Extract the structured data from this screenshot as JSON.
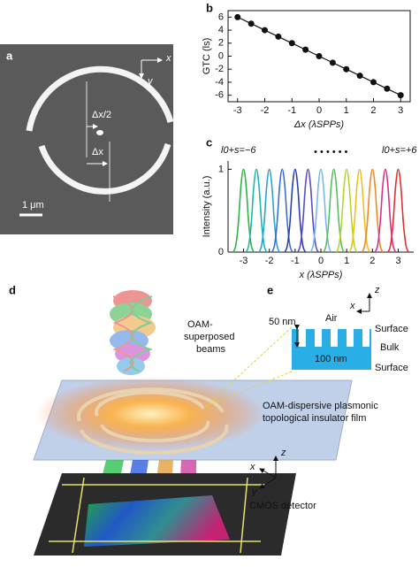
{
  "chart_data": [
    {
      "type": "line",
      "label": "b",
      "ylabel": "GTC (ls)",
      "xlabel": "Δx (λSPPs)",
      "x": [
        -3,
        -2.5,
        -2,
        -1.5,
        -1,
        -0.5,
        0,
        0.5,
        1,
        1.5,
        2,
        2.5,
        3
      ],
      "series": [
        {
          "color": "#111111",
          "values": [
            6,
            5,
            4,
            3,
            2,
            1,
            0,
            -1,
            -2,
            -3,
            -4,
            -5,
            -6
          ]
        }
      ],
      "markers": true,
      "frame": "box",
      "xlim": [
        -3.35,
        3.35
      ],
      "ylim": [
        -7,
        7
      ],
      "xticks": [
        -3,
        -2,
        -1,
        0,
        1,
        2,
        3
      ],
      "yticks": [
        -6,
        -4,
        -2,
        0,
        2,
        4,
        6
      ]
    },
    {
      "type": "line",
      "label": "c",
      "ylabel": "Intensity (a.u.)",
      "xlabel": "x (λSPPs)",
      "annotations": [
        "l0+s=−6",
        "l0+s=+6",
        "• • • • • •"
      ],
      "markers": false,
      "frame": "axes",
      "series": [
        {
          "color": "#2db34a",
          "x": [
            -3.4,
            -3.3,
            -3.2,
            -3.1,
            -3,
            -2.9,
            -2.8,
            -2.7,
            -2.6
          ],
          "values": [
            0,
            0.08,
            0.35,
            0.8,
            1,
            0.8,
            0.35,
            0.08,
            0
          ]
        },
        {
          "color": "#1fb5a8",
          "x": [
            -2.9,
            -2.8,
            -2.7,
            -2.6,
            -2.5,
            -2.4,
            -2.3,
            -2.2,
            -2.1
          ],
          "values": [
            0,
            0.08,
            0.35,
            0.8,
            1,
            0.8,
            0.35,
            0.08,
            0
          ]
        },
        {
          "color": "#2ea0d8",
          "x": [
            -2.4,
            -2.3,
            -2.2,
            -2.1,
            -2,
            -1.9,
            -1.8,
            -1.7,
            -1.6
          ],
          "values": [
            0,
            0.08,
            0.35,
            0.8,
            1,
            0.8,
            0.35,
            0.08,
            0
          ]
        },
        {
          "color": "#3a6fd0",
          "x": [
            -1.9,
            -1.8,
            -1.7,
            -1.6,
            -1.5,
            -1.4,
            -1.3,
            -1.2,
            -1.1
          ],
          "values": [
            0,
            0.08,
            0.35,
            0.8,
            1,
            0.8,
            0.35,
            0.08,
            0
          ]
        },
        {
          "color": "#2a3fb0",
          "x": [
            -1.4,
            -1.3,
            -1.2,
            -1.1,
            -1,
            -0.9,
            -0.8,
            -0.7,
            -0.6
          ],
          "values": [
            0,
            0.08,
            0.35,
            0.8,
            1,
            0.8,
            0.35,
            0.08,
            0
          ]
        },
        {
          "color": "#5a4bc8",
          "x": [
            -0.9,
            -0.8,
            -0.7,
            -0.6,
            -0.5,
            -0.4,
            -0.3,
            -0.2,
            -0.1
          ],
          "values": [
            0,
            0.08,
            0.35,
            0.8,
            1,
            0.8,
            0.35,
            0.08,
            0
          ]
        },
        {
          "color": "#7ab8e8",
          "x": [
            -0.4,
            -0.3,
            -0.2,
            -0.1,
            0,
            0.1,
            0.2,
            0.3,
            0.4
          ],
          "values": [
            0,
            0.08,
            0.35,
            0.8,
            1,
            0.8,
            0.35,
            0.08,
            0
          ]
        },
        {
          "color": "#55c060",
          "x": [
            0.1,
            0.2,
            0.3,
            0.4,
            0.5,
            0.6,
            0.7,
            0.8,
            0.9
          ],
          "values": [
            0,
            0.08,
            0.35,
            0.8,
            1,
            0.8,
            0.35,
            0.08,
            0
          ]
        },
        {
          "color": "#b8d432",
          "x": [
            0.6,
            0.7,
            0.8,
            0.9,
            1,
            1.1,
            1.2,
            1.3,
            1.4
          ],
          "values": [
            0,
            0.08,
            0.35,
            0.8,
            1,
            0.8,
            0.35,
            0.08,
            0
          ]
        },
        {
          "color": "#f0c020",
          "x": [
            1.1,
            1.2,
            1.3,
            1.4,
            1.5,
            1.6,
            1.7,
            1.8,
            1.9
          ],
          "values": [
            0,
            0.08,
            0.35,
            0.8,
            1,
            0.8,
            0.35,
            0.08,
            0
          ]
        },
        {
          "color": "#f08a20",
          "x": [
            1.6,
            1.7,
            1.8,
            1.9,
            2,
            2.1,
            2.2,
            2.3,
            2.4
          ],
          "values": [
            0,
            0.08,
            0.35,
            0.8,
            1,
            0.8,
            0.35,
            0.08,
            0
          ]
        },
        {
          "color": "#d8308a",
          "x": [
            2.1,
            2.2,
            2.3,
            2.4,
            2.5,
            2.6,
            2.7,
            2.8,
            2.9
          ],
          "values": [
            0,
            0.08,
            0.35,
            0.8,
            1,
            0.8,
            0.35,
            0.08,
            0
          ]
        },
        {
          "color": "#e03030",
          "x": [
            2.6,
            2.7,
            2.8,
            2.9,
            3,
            3.1,
            3.2,
            3.3,
            3.4
          ],
          "values": [
            0,
            0.08,
            0.35,
            0.8,
            1,
            0.8,
            0.35,
            0.08,
            0
          ]
        }
      ],
      "xlim": [
        -3.6,
        3.6
      ],
      "ylim": [
        0,
        1.1
      ],
      "xticks": [
        -3,
        -2,
        -1,
        0,
        1,
        2,
        3
      ],
      "yticks": [
        0,
        1
      ]
    }
  ],
  "panel_a": {
    "label": "a",
    "x_axis": "x",
    "y_axis": "y",
    "half_shift": "Δx/2",
    "shift": "Δx",
    "scale_bar": "1 μm"
  },
  "panel_d": {
    "label": "d",
    "beams": [
      "OAM-",
      "superposed",
      "beams"
    ],
    "film": [
      "OAM-dispersive plasmonic",
      "topological insulator film"
    ],
    "axes": {
      "x": "x",
      "y": "y",
      "z": "z"
    },
    "detector": "CMOS detector"
  },
  "panel_e": {
    "label": "e",
    "axes": {
      "z": "z",
      "x": "x"
    },
    "air": "Air",
    "depth": "50 nm",
    "period": "100 nm",
    "layers": [
      "Surface",
      "Bulk",
      "Surface"
    ]
  }
}
